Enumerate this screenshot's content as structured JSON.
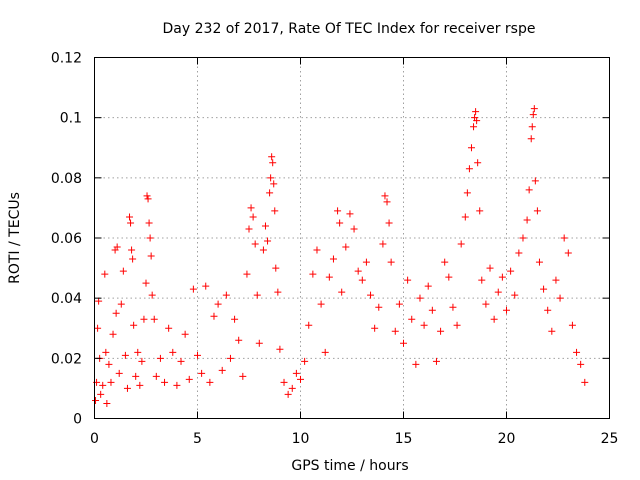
{
  "chart_data": {
    "type": "scatter",
    "title": "Day 232 of 2017, Rate Of TEC Index for receiver rspe",
    "xlabel": "GPS time / hours",
    "ylabel": "ROTI / TECUs",
    "xlim": [
      0,
      25
    ],
    "ylim": [
      0,
      0.12
    ],
    "xticks": [
      0,
      5,
      10,
      15,
      20,
      25
    ],
    "xtick_labels": [
      "0",
      "5",
      "10",
      "15",
      "20",
      "25"
    ],
    "yticks": [
      0,
      0.02,
      0.04,
      0.06,
      0.08,
      0.1,
      0.12
    ],
    "ytick_labels": [
      "0",
      "0.02",
      "0.04",
      "0.06",
      "0.08",
      "0.1",
      "0.12"
    ],
    "grid": true,
    "marker": "plus",
    "color": "#ff0000",
    "series": [
      {
        "points": [
          [
            0.05,
            0.006
          ],
          [
            0.1,
            0.012
          ],
          [
            0.15,
            0.03
          ],
          [
            0.2,
            0.039
          ],
          [
            0.25,
            0.02
          ],
          [
            0.3,
            0.008
          ],
          [
            0.4,
            0.011
          ],
          [
            0.5,
            0.048
          ],
          [
            0.55,
            0.022
          ],
          [
            0.6,
            0.005
          ],
          [
            0.7,
            0.018
          ],
          [
            0.8,
            0.012
          ],
          [
            0.9,
            0.028
          ],
          [
            1.0,
            0.056
          ],
          [
            1.05,
            0.035
          ],
          [
            1.1,
            0.057
          ],
          [
            1.2,
            0.015
          ],
          [
            1.3,
            0.038
          ],
          [
            1.4,
            0.049
          ],
          [
            1.5,
            0.021
          ],
          [
            1.6,
            0.01
          ],
          [
            1.7,
            0.067
          ],
          [
            1.75,
            0.065
          ],
          [
            1.8,
            0.056
          ],
          [
            1.85,
            0.053
          ],
          [
            1.9,
            0.031
          ],
          [
            2.0,
            0.014
          ],
          [
            2.1,
            0.022
          ],
          [
            2.2,
            0.011
          ],
          [
            2.3,
            0.019
          ],
          [
            2.4,
            0.033
          ],
          [
            2.5,
            0.045
          ],
          [
            2.55,
            0.074
          ],
          [
            2.6,
            0.073
          ],
          [
            2.65,
            0.065
          ],
          [
            2.7,
            0.06
          ],
          [
            2.75,
            0.054
          ],
          [
            2.8,
            0.041
          ],
          [
            2.9,
            0.033
          ],
          [
            3.0,
            0.014
          ],
          [
            3.2,
            0.02
          ],
          [
            3.4,
            0.012
          ],
          [
            3.6,
            0.03
          ],
          [
            3.8,
            0.022
          ],
          [
            4.0,
            0.011
          ],
          [
            4.2,
            0.019
          ],
          [
            4.4,
            0.028
          ],
          [
            4.6,
            0.013
          ],
          [
            4.8,
            0.043
          ],
          [
            5.0,
            0.021
          ],
          [
            5.2,
            0.015
          ],
          [
            5.4,
            0.044
          ],
          [
            5.6,
            0.012
          ],
          [
            5.8,
            0.034
          ],
          [
            6.0,
            0.038
          ],
          [
            6.2,
            0.016
          ],
          [
            6.4,
            0.041
          ],
          [
            6.6,
            0.02
          ],
          [
            6.8,
            0.033
          ],
          [
            7.0,
            0.026
          ],
          [
            7.2,
            0.014
          ],
          [
            7.4,
            0.048
          ],
          [
            7.5,
            0.063
          ],
          [
            7.6,
            0.07
          ],
          [
            7.7,
            0.067
          ],
          [
            7.8,
            0.058
          ],
          [
            7.9,
            0.041
          ],
          [
            8.0,
            0.025
          ],
          [
            8.2,
            0.056
          ],
          [
            8.3,
            0.064
          ],
          [
            8.4,
            0.059
          ],
          [
            8.5,
            0.075
          ],
          [
            8.55,
            0.08
          ],
          [
            8.6,
            0.087
          ],
          [
            8.65,
            0.085
          ],
          [
            8.7,
            0.078
          ],
          [
            8.75,
            0.069
          ],
          [
            8.8,
            0.05
          ],
          [
            8.9,
            0.042
          ],
          [
            9.0,
            0.023
          ],
          [
            9.2,
            0.012
          ],
          [
            9.4,
            0.008
          ],
          [
            9.6,
            0.01
          ],
          [
            9.8,
            0.015
          ],
          [
            10.0,
            0.013
          ],
          [
            10.2,
            0.019
          ],
          [
            10.4,
            0.031
          ],
          [
            10.6,
            0.048
          ],
          [
            10.8,
            0.056
          ],
          [
            11.0,
            0.038
          ],
          [
            11.2,
            0.022
          ],
          [
            11.4,
            0.047
          ],
          [
            11.6,
            0.053
          ],
          [
            11.8,
            0.069
          ],
          [
            11.9,
            0.065
          ],
          [
            12.0,
            0.042
          ],
          [
            12.2,
            0.057
          ],
          [
            12.4,
            0.068
          ],
          [
            12.6,
            0.063
          ],
          [
            12.8,
            0.049
          ],
          [
            13.0,
            0.046
          ],
          [
            13.2,
            0.052
          ],
          [
            13.4,
            0.041
          ],
          [
            13.6,
            0.03
          ],
          [
            13.8,
            0.037
          ],
          [
            14.0,
            0.058
          ],
          [
            14.1,
            0.074
          ],
          [
            14.2,
            0.072
          ],
          [
            14.3,
            0.065
          ],
          [
            14.4,
            0.052
          ],
          [
            14.6,
            0.029
          ],
          [
            14.8,
            0.038
          ],
          [
            15.0,
            0.025
          ],
          [
            15.2,
            0.046
          ],
          [
            15.4,
            0.033
          ],
          [
            15.6,
            0.018
          ],
          [
            15.8,
            0.04
          ],
          [
            16.0,
            0.031
          ],
          [
            16.2,
            0.044
          ],
          [
            16.4,
            0.036
          ],
          [
            16.6,
            0.019
          ],
          [
            16.8,
            0.029
          ],
          [
            17.0,
            0.052
          ],
          [
            17.2,
            0.047
          ],
          [
            17.4,
            0.037
          ],
          [
            17.6,
            0.031
          ],
          [
            17.8,
            0.058
          ],
          [
            18.0,
            0.067
          ],
          [
            18.1,
            0.075
          ],
          [
            18.2,
            0.083
          ],
          [
            18.3,
            0.09
          ],
          [
            18.4,
            0.097
          ],
          [
            18.45,
            0.1
          ],
          [
            18.5,
            0.102
          ],
          [
            18.55,
            0.099
          ],
          [
            18.6,
            0.085
          ],
          [
            18.7,
            0.069
          ],
          [
            18.8,
            0.046
          ],
          [
            19.0,
            0.038
          ],
          [
            19.2,
            0.05
          ],
          [
            19.4,
            0.033
          ],
          [
            19.6,
            0.042
          ],
          [
            19.8,
            0.047
          ],
          [
            20.0,
            0.036
          ],
          [
            20.2,
            0.049
          ],
          [
            20.4,
            0.041
          ],
          [
            20.6,
            0.055
          ],
          [
            20.8,
            0.06
          ],
          [
            21.0,
            0.066
          ],
          [
            21.1,
            0.076
          ],
          [
            21.2,
            0.093
          ],
          [
            21.25,
            0.097
          ],
          [
            21.3,
            0.101
          ],
          [
            21.35,
            0.103
          ],
          [
            21.4,
            0.079
          ],
          [
            21.5,
            0.069
          ],
          [
            21.6,
            0.052
          ],
          [
            21.8,
            0.043
          ],
          [
            22.0,
            0.036
          ],
          [
            22.2,
            0.029
          ],
          [
            22.4,
            0.046
          ],
          [
            22.6,
            0.04
          ],
          [
            22.8,
            0.06
          ],
          [
            23.0,
            0.055
          ],
          [
            23.2,
            0.031
          ],
          [
            23.4,
            0.022
          ],
          [
            23.6,
            0.018
          ],
          [
            23.8,
            0.012
          ]
        ]
      }
    ]
  }
}
